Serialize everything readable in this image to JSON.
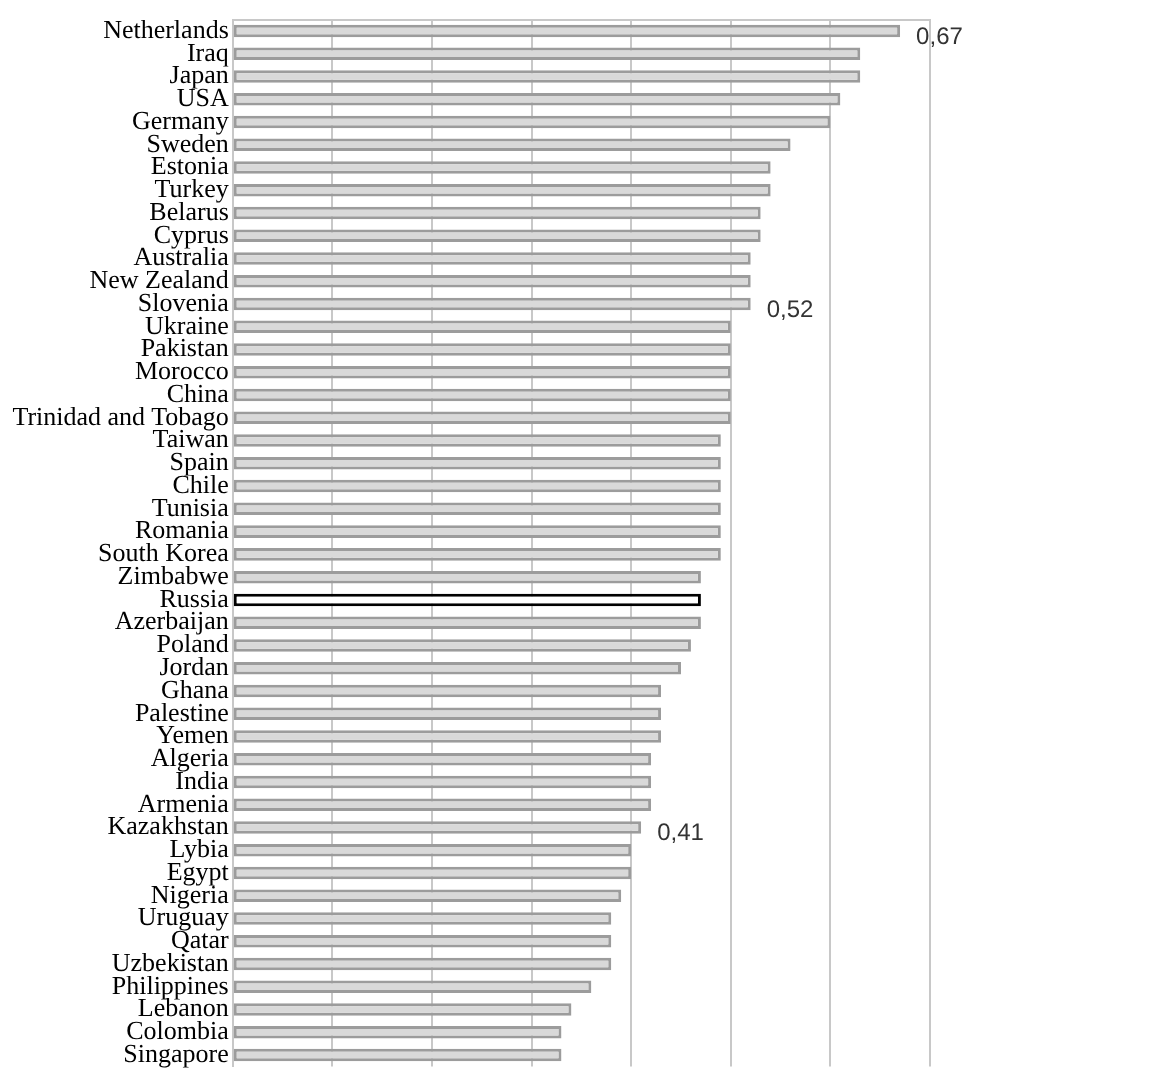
{
  "chart_data": {
    "type": "bar",
    "orientation": "horizontal",
    "categories": [
      "Netherlands",
      "Iraq",
      "Japan",
      "USA",
      "Germany",
      "Sweden",
      "Estonia",
      "Turkey",
      "Belarus",
      "Cyprus",
      "Australia",
      "New Zealand",
      "Slovenia",
      "Ukraine",
      "Pakistan",
      "Morocco",
      "China",
      "Trinidad and Tobago",
      "Taiwan",
      "Spain",
      "Chile",
      "Tunisia",
      "Romania",
      "South Korea",
      "Zimbabwe",
      "Russia",
      "Azerbaijan",
      "Poland",
      "Jordan",
      "Ghana",
      "Palestine",
      "Yemen",
      "Algeria",
      "India",
      "Armenia",
      "Kazakhstan",
      "Lybia",
      "Egypt",
      "Nigeria",
      "Uruguay",
      "Qatar",
      "Uzbekistan",
      "Philippines",
      "Lebanon",
      "Colombia",
      "Singapore"
    ],
    "values": [
      0.67,
      0.63,
      0.63,
      0.61,
      0.6,
      0.56,
      0.54,
      0.54,
      0.53,
      0.53,
      0.52,
      0.52,
      0.52,
      0.5,
      0.5,
      0.5,
      0.5,
      0.5,
      0.49,
      0.49,
      0.49,
      0.49,
      0.49,
      0.49,
      0.47,
      0.47,
      0.47,
      0.46,
      0.45,
      0.43,
      0.43,
      0.43,
      0.42,
      0.42,
      0.42,
      0.41,
      0.4,
      0.4,
      0.39,
      0.38,
      0.38,
      0.38,
      0.36,
      0.34,
      0.33,
      0.33
    ],
    "value_labels": [
      "0,67",
      null,
      null,
      null,
      null,
      null,
      null,
      null,
      null,
      null,
      null,
      null,
      "0,52",
      null,
      null,
      null,
      null,
      null,
      null,
      null,
      null,
      null,
      null,
      null,
      null,
      null,
      null,
      null,
      null,
      null,
      null,
      null,
      null,
      null,
      null,
      "0,41",
      null,
      null,
      null,
      null,
      null,
      null,
      null,
      null,
      null,
      null
    ],
    "colors": [
      "#d9d9d9",
      "#d9d9d9",
      "#d9d9d9",
      "#d9d9d9",
      "#d9d9d9",
      "#d9d9d9",
      "#d9d9d9",
      "#d9d9d9",
      "#d9d9d9",
      "#d9d9d9",
      "#d9d9d9",
      "#d9d9d9",
      "#d9d9d9",
      "#d9d9d9",
      "#d9d9d9",
      "#d9d9d9",
      "#d9d9d9",
      "#d9d9d9",
      "#d9d9d9",
      "#d9d9d9",
      "#d9d9d9",
      "#d9d9d9",
      "#d9d9d9",
      "#d9d9d9",
      "#d9d9d9",
      "#ffffff",
      "#d9d9d9",
      "#d9d9d9",
      "#d9d9d9",
      "#d9d9d9",
      "#d9d9d9",
      "#d9d9d9",
      "#d9d9d9",
      "#d9d9d9",
      "#d9d9d9",
      "#d9d9d9",
      "#d9d9d9",
      "#d9d9d9",
      "#d9d9d9",
      "#d9d9d9",
      "#d9d9d9",
      "#d9d9d9",
      "#d9d9d9",
      "#d9d9d9",
      "#d9d9d9",
      "#d9d9d9"
    ],
    "grid": "x",
    "tick_labels": "y",
    "legend": false
  }
}
